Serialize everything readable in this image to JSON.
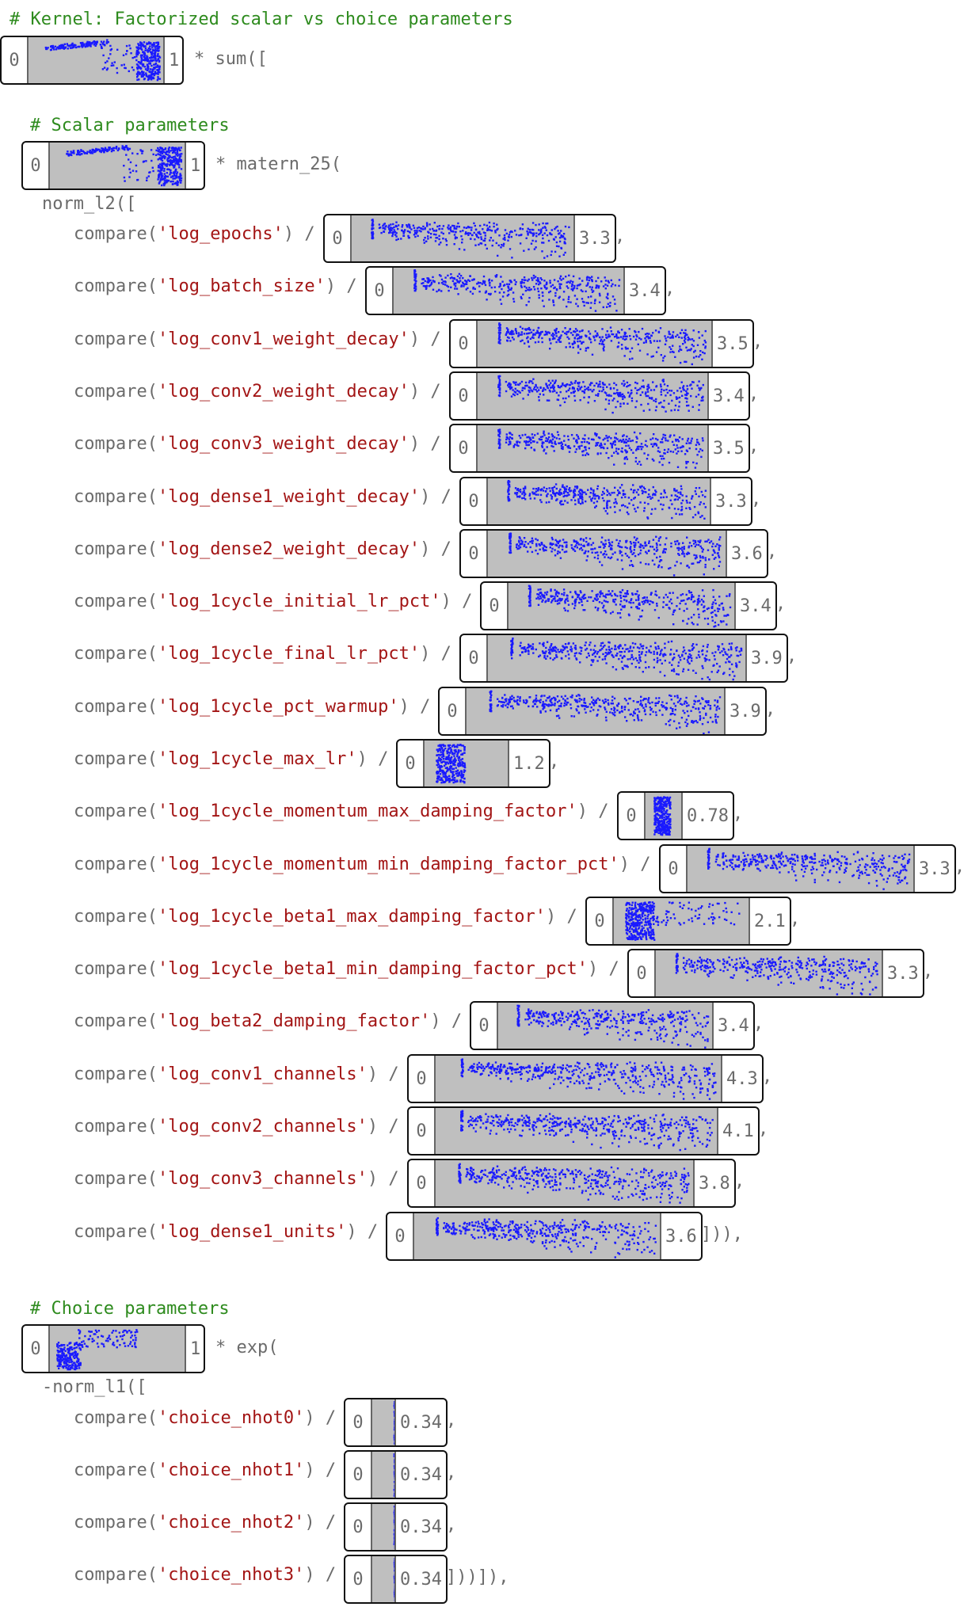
{
  "header_comment": "# Kernel: Factorized scalar vs choice parameters",
  "outer": {
    "widget": {
      "min": "0",
      "max": "1",
      "profile": "outer"
    },
    "suffix": "* sum(["
  },
  "scalar_section": {
    "comment": "# Scalar parameters",
    "widget": {
      "min": "0",
      "max": "1",
      "profile": "outer"
    },
    "suffix": "* matern_25(",
    "norm_line": "norm_l2([",
    "rows": [
      {
        "name": "'log_epochs'",
        "min": "0",
        "max": "3.3",
        "tail": ",",
        "profile": "spread"
      },
      {
        "name": "'log_batch_size'",
        "min": "0",
        "max": "3.4",
        "tail": ",",
        "profile": "spread"
      },
      {
        "name": "'log_conv1_weight_decay'",
        "min": "0",
        "max": "3.5",
        "tail": ",",
        "profile": "spread"
      },
      {
        "name": "'log_conv2_weight_decay'",
        "min": "0",
        "max": "3.4",
        "tail": ",",
        "profile": "spread"
      },
      {
        "name": "'log_conv3_weight_decay'",
        "min": "0",
        "max": "3.5",
        "tail": ",",
        "profile": "spread"
      },
      {
        "name": "'log_dense1_weight_decay'",
        "min": "0",
        "max": "3.3",
        "tail": ",",
        "profile": "spread"
      },
      {
        "name": "'log_dense2_weight_decay'",
        "min": "0",
        "max": "3.6",
        "tail": ",",
        "profile": "spread"
      },
      {
        "name": "'log_1cycle_initial_lr_pct'",
        "min": "0",
        "max": "3.4",
        "tail": ",",
        "profile": "spread"
      },
      {
        "name": "'log_1cycle_final_lr_pct'",
        "min": "0",
        "max": "3.9",
        "tail": ",",
        "profile": "spread"
      },
      {
        "name": "'log_1cycle_pct_warmup'",
        "min": "0",
        "max": "3.9",
        "tail": ",",
        "profile": "spread"
      },
      {
        "name": "'log_1cycle_max_lr'",
        "min": "0",
        "max": "1.2",
        "tail": ",",
        "profile": "blob"
      },
      {
        "name": "'log_1cycle_momentum_max_damping_factor'",
        "min": "0",
        "max": "0.78",
        "tail": ",",
        "profile": "blob"
      },
      {
        "name": "'log_1cycle_momentum_min_damping_factor_pct'",
        "min": "0",
        "max": "3.3",
        "tail": ",",
        "profile": "spread"
      },
      {
        "name": "'log_1cycle_beta1_max_damping_factor'",
        "min": "0",
        "max": "2.1",
        "tail": ",",
        "profile": "blob"
      },
      {
        "name": "'log_1cycle_beta1_min_damping_factor_pct'",
        "min": "0",
        "max": "3.3",
        "tail": ",",
        "profile": "spread"
      },
      {
        "name": "'log_beta2_damping_factor'",
        "min": "0",
        "max": "3.4",
        "tail": ",",
        "profile": "spread"
      },
      {
        "name": "'log_conv1_channels'",
        "min": "0",
        "max": "4.3",
        "tail": ",",
        "profile": "spread"
      },
      {
        "name": "'log_conv2_channels'",
        "min": "0",
        "max": "4.1",
        "tail": ",",
        "profile": "spread"
      },
      {
        "name": "'log_conv3_channels'",
        "min": "0",
        "max": "3.8",
        "tail": ",",
        "profile": "spread"
      },
      {
        "name": "'log_dense1_units'",
        "min": "0",
        "max": "3.6",
        "tail": "])),",
        "profile": "spread"
      }
    ]
  },
  "choice_section": {
    "comment": "# Choice parameters",
    "widget": {
      "min": "0",
      "max": "1",
      "profile": "choice"
    },
    "suffix": "* exp(",
    "norm_line": "-norm_l1([",
    "rows": [
      {
        "name": "'choice_nhot0'",
        "min": "0",
        "max": "0.34",
        "tail": ",",
        "profile": "line"
      },
      {
        "name": "'choice_nhot1'",
        "min": "0",
        "max": "0.34",
        "tail": ",",
        "profile": "line"
      },
      {
        "name": "'choice_nhot2'",
        "min": "0",
        "max": "0.34",
        "tail": ",",
        "profile": "line"
      },
      {
        "name": "'choice_nhot3'",
        "min": "0",
        "max": "0.34",
        "tail": "]))]),",
        "profile": "line"
      }
    ]
  },
  "call_prefix": "compare(",
  "call_close": ") /",
  "colors": {
    "comment": "#2e8b1e",
    "string": "#a31515",
    "text": "#6b6b6b",
    "dots": "#1a1aff",
    "plot_bg": "#bfbfbf"
  }
}
